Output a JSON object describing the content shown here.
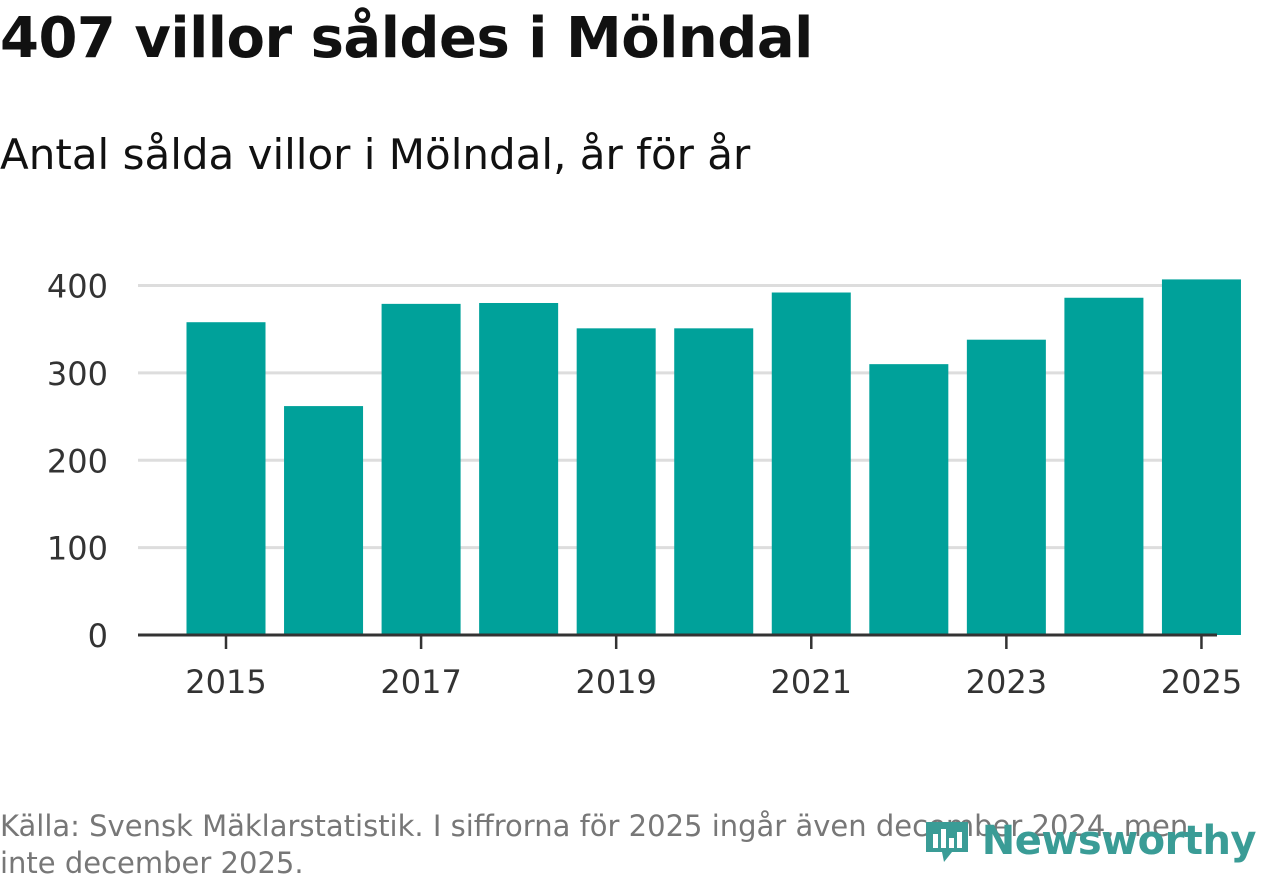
{
  "header": {
    "title": "407 villor såldes i Mölndal",
    "subtitle": "Antal sålda villor i Mölndal, år för år"
  },
  "chart_data": {
    "type": "bar",
    "title": "407 villor såldes i Mölndal",
    "subtitle": "Antal sålda villor i Mölndal, år för år",
    "xlabel": "",
    "ylabel": "",
    "categories": [
      "2015",
      "2016",
      "2017",
      "2018",
      "2019",
      "2020",
      "2021",
      "2022",
      "2023",
      "2024",
      "2025"
    ],
    "values": [
      358,
      262,
      379,
      380,
      351,
      351,
      392,
      310,
      338,
      386,
      407
    ],
    "x_tick_labels": [
      "2015",
      "2017",
      "2019",
      "2021",
      "2023",
      "2025"
    ],
    "y_ticks": [
      0,
      100,
      200,
      300,
      400
    ],
    "ylim": [
      0,
      407
    ],
    "grid": "horizontal",
    "bar_color": "#00a19a"
  },
  "footer": {
    "source": "Källa: Svensk Mäklarstatistik. I siffrorna för 2025 ingår även december 2024, men inte december 2025.",
    "brand": "Newsworthy",
    "brand_icon": "newsworthy-logo-icon",
    "brand_color": "#3a9c96"
  }
}
